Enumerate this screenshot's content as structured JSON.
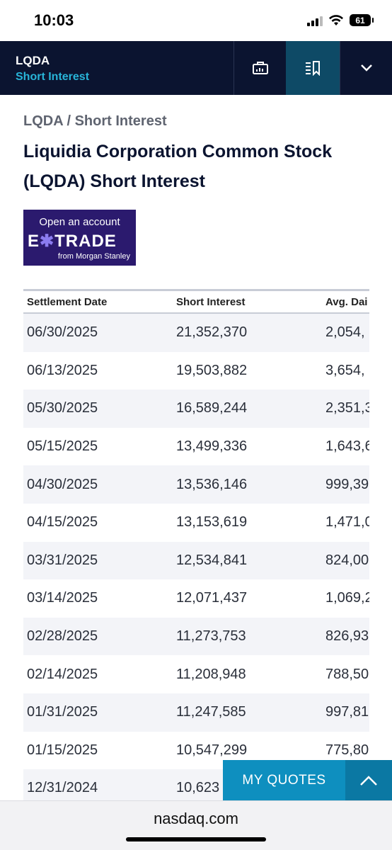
{
  "status_bar": {
    "time": "10:03",
    "battery": "61"
  },
  "header": {
    "symbol": "LQDA",
    "page": "Short Interest"
  },
  "breadcrumb": "LQDA / Short Interest",
  "title": "Liquidia Corporation Common Stock (LQDA) Short Interest",
  "ad": {
    "line1": "Open an account",
    "brand_a": "E",
    "brand_star": "✱",
    "brand_b": "TRADE",
    "line3": "from Morgan Stanley"
  },
  "table": {
    "headers": [
      "Settlement Date",
      "Short Interest",
      "Avg. Dai"
    ],
    "rows": [
      [
        "06/30/2025",
        "21,352,370",
        "2,054,"
      ],
      [
        "06/13/2025",
        "19,503,882",
        "3,654,"
      ],
      [
        "05/30/2025",
        "16,589,244",
        "2,351,3"
      ],
      [
        "05/15/2025",
        "13,499,336",
        "1,643,6"
      ],
      [
        "04/30/2025",
        "13,536,146",
        "999,39"
      ],
      [
        "04/15/2025",
        "13,153,619",
        "1,471,0"
      ],
      [
        "03/31/2025",
        "12,534,841",
        "824,00"
      ],
      [
        "03/14/2025",
        "12,071,437",
        "1,069,2"
      ],
      [
        "02/28/2025",
        "11,273,753",
        "826,93"
      ],
      [
        "02/14/2025",
        "11,208,948",
        "788,50"
      ],
      [
        "01/31/2025",
        "11,247,585",
        "997,81"
      ],
      [
        "01/15/2025",
        "10,547,299",
        "775,80"
      ],
      [
        "12/31/2024",
        "10,623",
        ""
      ]
    ]
  },
  "my_quotes": {
    "label": "MY QUOTES"
  },
  "url": "nasdaq.com",
  "colors": {
    "header_bg": "#0b1430",
    "accent": "#28b4d8",
    "quotes_bg": "#0e8fbf"
  }
}
